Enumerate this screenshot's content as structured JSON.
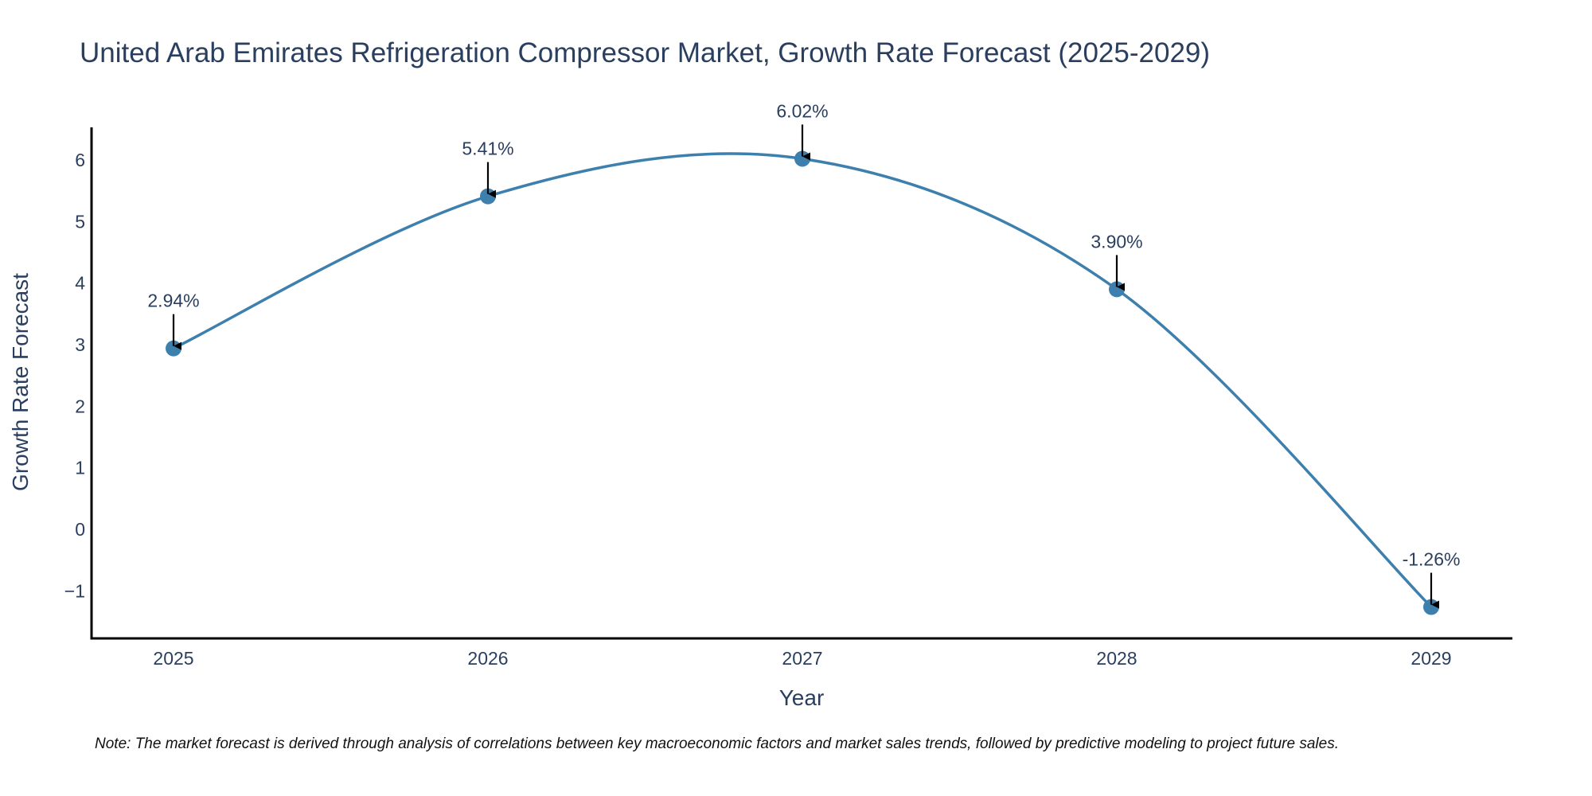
{
  "chart_data": {
    "type": "line",
    "title": "United Arab Emirates Refrigeration Compressor Market, Growth Rate Forecast (2025-2029)",
    "xlabel": "Year",
    "ylabel": "Growth Rate Forecast",
    "categories": [
      "2025",
      "2026",
      "2027",
      "2028",
      "2029"
    ],
    "series": [
      {
        "name": "Growth Rate Forecast",
        "values": [
          2.94,
          5.41,
          6.02,
          3.9,
          -1.26
        ]
      }
    ],
    "data_labels": [
      "2.94%",
      "5.41%",
      "6.02%",
      "3.90%",
      "-1.26%"
    ],
    "y_ticks": [
      -1,
      0,
      1,
      2,
      3,
      4,
      5,
      6
    ],
    "y_tick_labels": [
      "−1",
      "0",
      "1",
      "2",
      "3",
      "4",
      "5",
      "6"
    ],
    "ylim": [
      -1.77,
      6.53
    ],
    "grid": false,
    "line_shape": "spline",
    "line_color": "#3d7fad",
    "marker_color": "#3d7fad",
    "annotation_arrow_color": "#000000"
  },
  "note": "Note: The market forecast is derived through analysis of correlations between key macroeconomic factors and market sales trends, followed by predictive modeling to project future sales."
}
